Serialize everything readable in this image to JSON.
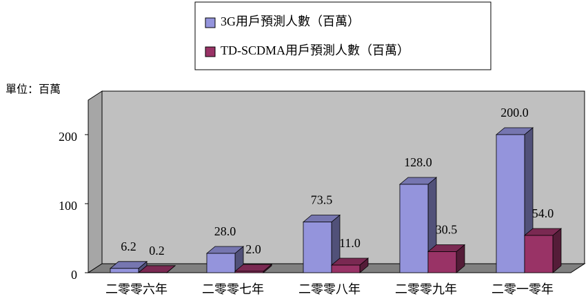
{
  "chart_data": {
    "type": "bar3d",
    "y_label": "單位：百萬",
    "categories": [
      "二零零六年",
      "二零零七年",
      "二零零八年",
      "二零零九年",
      "二零一零年"
    ],
    "series": [
      {
        "name": "3G用戶預測人數（百萬）",
        "color": "#9494dc",
        "values": [
          6.2,
          28.0,
          73.5,
          128.0,
          200.0
        ],
        "value_labels": [
          "6.2",
          "28.0",
          "73.5",
          "128.0",
          "200.0"
        ]
      },
      {
        "name": "TD-SCDMA用戶預測人數（百萬）",
        "color": "#993366",
        "values": [
          0.2,
          2.0,
          11.0,
          30.5,
          54.0
        ],
        "value_labels": [
          "0.2",
          "2.0",
          "11.0",
          "30.5",
          "54.0"
        ]
      }
    ],
    "ylim": [
      0,
      250
    ],
    "yticks": [
      0,
      100,
      200
    ]
  }
}
